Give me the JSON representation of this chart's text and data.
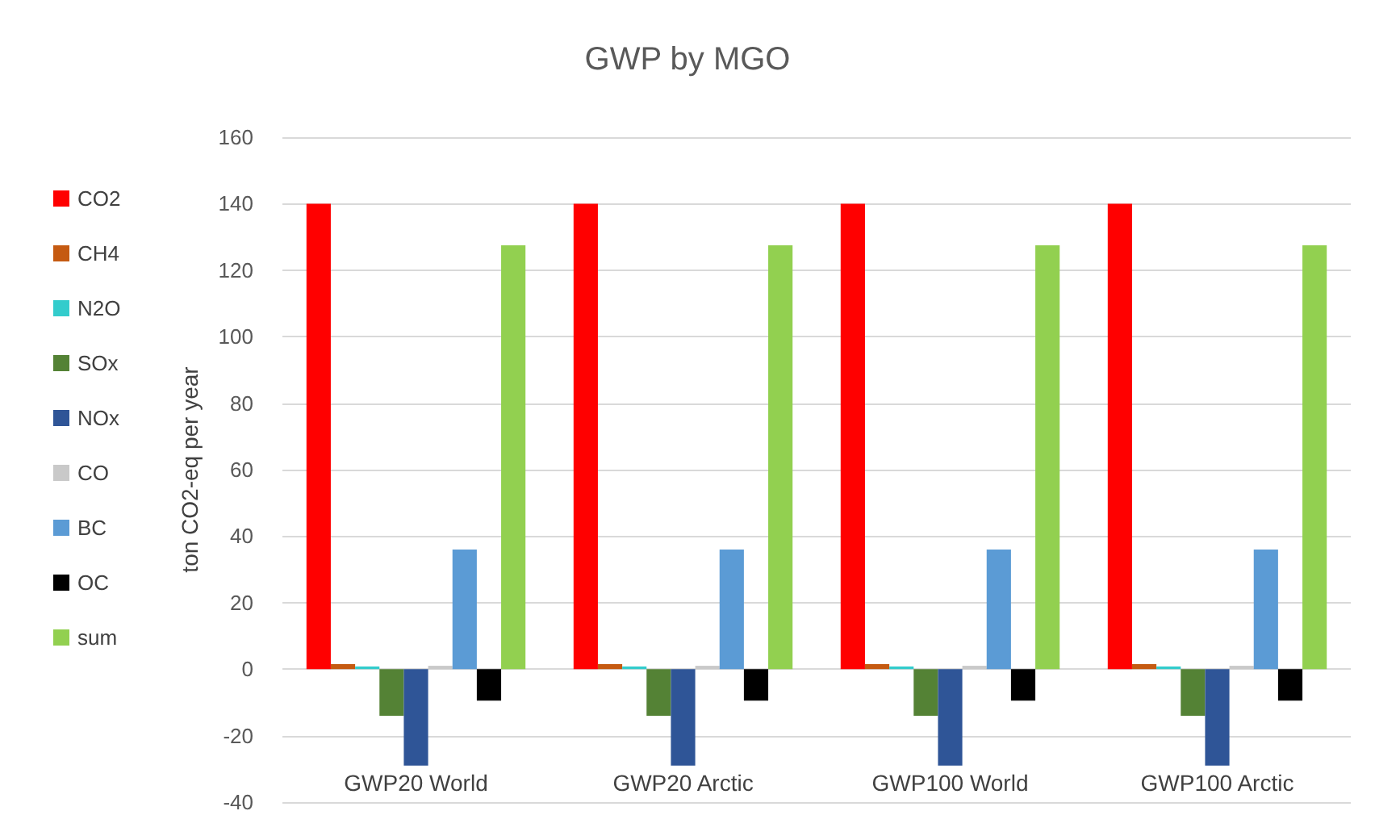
{
  "chart_data": {
    "type": "bar",
    "title": "GWP by MGO",
    "ylabel": "ton CO2-eq per year",
    "categories": [
      "GWP20 World",
      "GWP20 Arctic",
      "GWP100 World",
      "GWP100 Arctic"
    ],
    "series": [
      {
        "name": "CO2",
        "color": "#ff0000",
        "values": [
          140,
          140,
          140,
          140
        ]
      },
      {
        "name": "CH4",
        "color": "#c55a11",
        "values": [
          1.5,
          1.5,
          1.5,
          1.5
        ]
      },
      {
        "name": "N2O",
        "color": "#33cccc",
        "values": [
          0.8,
          0.8,
          0.8,
          0.8
        ]
      },
      {
        "name": "SOx",
        "color": "#548235",
        "values": [
          -14,
          -14,
          -14,
          -14
        ]
      },
      {
        "name": "NOx",
        "color": "#2f5597",
        "values": [
          -29,
          -29,
          -29,
          -29
        ]
      },
      {
        "name": "CO",
        "color": "#c9c9c9",
        "values": [
          1,
          1,
          1,
          1
        ]
      },
      {
        "name": "BC",
        "color": "#5b9bd5",
        "values": [
          36,
          36,
          36,
          36
        ]
      },
      {
        "name": "OC",
        "color": "#000000",
        "values": [
          -9.5,
          -9.5,
          -9.5,
          -9.5
        ]
      },
      {
        "name": "sum",
        "color": "#92d050",
        "values": [
          127.5,
          127.5,
          127.5,
          127.5
        ]
      }
    ],
    "ylim": [
      -40,
      160
    ],
    "yticks": [
      -40,
      -20,
      0,
      20,
      40,
      60,
      80,
      100,
      120,
      140,
      160
    ],
    "grid": "y",
    "legend": "left"
  }
}
